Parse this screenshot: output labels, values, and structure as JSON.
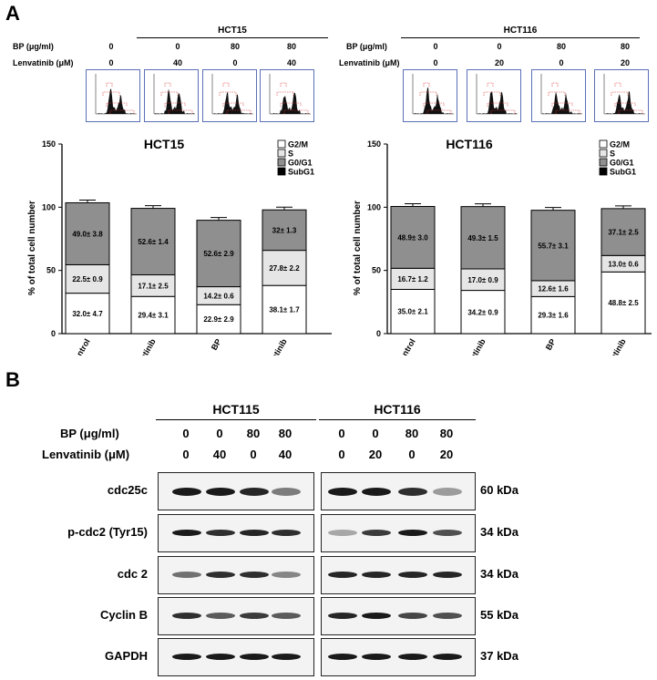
{
  "panelA": {
    "letter": "A",
    "groups": [
      {
        "title": "HCT15",
        "bp": [
          "0",
          "0",
          "80",
          "80"
        ],
        "lenv": [
          "0",
          "40",
          "0",
          "40"
        ]
      },
      {
        "title": "HCT116",
        "bp": [
          "0",
          "0",
          "80",
          "80"
        ],
        "lenv": [
          "0",
          "20",
          "0",
          "20"
        ]
      }
    ],
    "row_labels": {
      "bp": "BP (μg/ml)",
      "lenv": "Lenvatinib (μM)"
    }
  },
  "chart_data": [
    {
      "type": "bar",
      "stacked": true,
      "title": "HCT15",
      "ylabel": "% of total cell number",
      "ylim": [
        0,
        150
      ],
      "yticks": [
        "0",
        "50",
        "100",
        "150"
      ],
      "categories": [
        "control",
        "Lenvatinib",
        "BP",
        "BP+Lenvatinib"
      ],
      "legend": [
        "G2/M",
        "S",
        "G0/G1",
        "SubG1"
      ],
      "series": [
        {
          "name": "SubG1",
          "values": [
            0,
            0,
            0,
            0
          ]
        },
        {
          "name": "G0/G1",
          "values": [
            32.0,
            29.4,
            22.9,
            38.1
          ]
        },
        {
          "name": "S",
          "values": [
            22.5,
            17.1,
            14.2,
            27.8
          ]
        },
        {
          "name": "G2/M",
          "values": [
            49.0,
            52.6,
            52.6,
            32.0
          ]
        }
      ],
      "segment_labels": [
        [
          "32.0± 4.7",
          "22.5± 0.9",
          "49.0± 3.8"
        ],
        [
          "29.4± 3.1",
          "17.1± 2.5",
          "52.6± 1.4"
        ],
        [
          "22.9± 2.9",
          "14.2± 0.6",
          "52.6± 2.9"
        ],
        [
          "38.1± 1.7",
          "27.8± 2.2",
          "32± 1.3"
        ]
      ]
    },
    {
      "type": "bar",
      "stacked": true,
      "title": "HCT116",
      "ylabel": "% of total cell number",
      "ylim": [
        0,
        150
      ],
      "yticks": [
        "0",
        "50",
        "100",
        "150"
      ],
      "categories": [
        "control",
        "Lenvatinib",
        "BP",
        "BP+Lenvatinib"
      ],
      "legend": [
        "G2/M",
        "S",
        "G0/G1",
        "SubG1"
      ],
      "series": [
        {
          "name": "SubG1",
          "values": [
            0,
            0,
            0,
            0
          ]
        },
        {
          "name": "G0/G1",
          "values": [
            35.0,
            34.2,
            29.3,
            48.8
          ]
        },
        {
          "name": "S",
          "values": [
            16.7,
            17.0,
            12.6,
            13.0
          ]
        },
        {
          "name": "G2/M",
          "values": [
            48.9,
            49.3,
            55.7,
            37.1
          ]
        }
      ],
      "segment_labels": [
        [
          "35.0± 2.1",
          "16.7± 1.2",
          "48.9± 3.0"
        ],
        [
          "34.2± 0.9",
          "17.0± 0.9",
          "49.3± 1.5"
        ],
        [
          "29.3± 1.6",
          "12.6± 1.6",
          "55.7± 3.1"
        ],
        [
          "48.8± 2.5",
          "13.0± 0.6",
          "37.1± 2.5"
        ]
      ]
    }
  ],
  "panelB": {
    "letter": "B",
    "groups": [
      {
        "title": "HCT115",
        "bp": [
          "0",
          "0",
          "80",
          "80"
        ],
        "lenv": [
          "0",
          "40",
          "0",
          "40"
        ]
      },
      {
        "title": "HCT116",
        "bp": [
          "0",
          "0",
          "80",
          "80"
        ],
        "lenv": [
          "0",
          "20",
          "0",
          "20"
        ]
      }
    ],
    "row_labels": {
      "bp": "BP (μg/ml)",
      "lenv": "Lenvatinib (μM)"
    },
    "blots": [
      {
        "protein": "cdc25c",
        "kda": "60 kDa"
      },
      {
        "protein": "p-cdc2 (Tyr15)",
        "kda": "34 kDa"
      },
      {
        "protein": "cdc 2",
        "kda": "34 kDa"
      },
      {
        "protein": "Cyclin B",
        "kda": "55 kDa"
      },
      {
        "protein": "GAPDH",
        "kda": "37 kDa"
      }
    ]
  }
}
